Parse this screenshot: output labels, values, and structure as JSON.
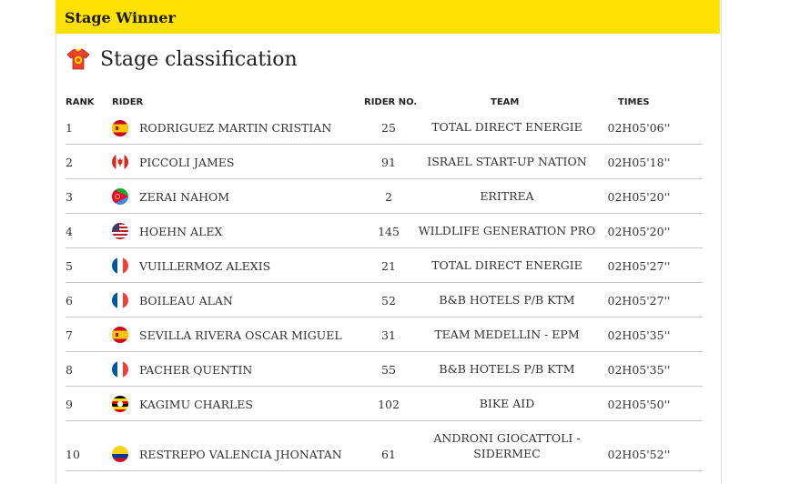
{
  "banner": {
    "title": "Stage Winner"
  },
  "section": {
    "title": "Stage classification",
    "icon": "jersey-icon"
  },
  "columns": {
    "rank": "RANK",
    "rider": "RIDER",
    "number": "RIDER NO.",
    "team": "TEAM",
    "times": "TIMES"
  },
  "rows": [
    {
      "rank": "1",
      "flag": "spain-flag-icon",
      "rider": "RODRIGUEZ MARTIN CRISTIAN",
      "number": "25",
      "team": "TOTAL DIRECT ENERGIE",
      "time": "02H05'06''"
    },
    {
      "rank": "2",
      "flag": "canada-flag-icon",
      "rider": "PICCOLI JAMES",
      "number": "91",
      "team": "ISRAEL START-UP NATION",
      "time": "02H05'18''"
    },
    {
      "rank": "3",
      "flag": "eritrea-flag-icon",
      "rider": "ZERAI NAHOM",
      "number": "2",
      "team": "ERITREA",
      "time": "02H05'20''"
    },
    {
      "rank": "4",
      "flag": "usa-flag-icon",
      "rider": "HOEHN ALEX",
      "number": "145",
      "team": "WILDLIFE GENERATION PRO",
      "time": "02H05'20''"
    },
    {
      "rank": "5",
      "flag": "france-flag-icon",
      "rider": "VUILLERMOZ ALEXIS",
      "number": "21",
      "team": "TOTAL DIRECT ENERGIE",
      "time": "02H05'27''"
    },
    {
      "rank": "6",
      "flag": "france-flag-icon",
      "rider": "BOILEAU ALAN",
      "number": "52",
      "team": "B&B HOTELS P/B KTM",
      "time": "02H05'27''"
    },
    {
      "rank": "7",
      "flag": "spain-flag-icon",
      "rider": "SEVILLA RIVERA OSCAR MIGUEL",
      "number": "31",
      "team": "TEAM MEDELLIN - EPM",
      "time": "02H05'35''"
    },
    {
      "rank": "8",
      "flag": "france-flag-icon",
      "rider": "PACHER QUENTIN",
      "number": "55",
      "team": "B&B HOTELS P/B KTM",
      "time": "02H05'35''"
    },
    {
      "rank": "9",
      "flag": "uganda-flag-icon",
      "rider": "KAGIMU CHARLES",
      "number": "102",
      "team": "BIKE AID",
      "time": "02H05'50''"
    },
    {
      "rank": "10",
      "flag": "colombia-flag-icon",
      "rider": "RESTREPO VALENCIA JHONATAN",
      "number": "61",
      "team": "ANDRONI GIOCATTOLI - SIDERMEC",
      "time": "02H05'52''"
    }
  ],
  "colors": {
    "banner": "#ffe100",
    "divider": "#c9c9c9"
  }
}
